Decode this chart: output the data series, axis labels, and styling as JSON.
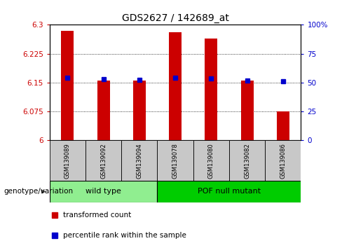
{
  "title": "GDS2627 / 142689_at",
  "samples": [
    "GSM139089",
    "GSM139092",
    "GSM139094",
    "GSM139078",
    "GSM139080",
    "GSM139082",
    "GSM139086"
  ],
  "bar_values": [
    6.285,
    6.155,
    6.155,
    6.28,
    6.265,
    6.155,
    6.075
  ],
  "percentile_values": [
    6.163,
    6.158,
    6.156,
    6.163,
    6.16,
    6.155,
    6.153
  ],
  "bar_color": "#cc0000",
  "percentile_color": "#0000cc",
  "ymin": 6.0,
  "ymax": 6.3,
  "yticks_left": [
    6.0,
    6.075,
    6.15,
    6.225,
    6.3
  ],
  "yticks_left_labels": [
    "6",
    "6.075",
    "6.15",
    "6.225",
    "6.3"
  ],
  "yticks_right": [
    0,
    25,
    50,
    75,
    100
  ],
  "yticks_right_labels": [
    "0",
    "25",
    "50",
    "75",
    "100%"
  ],
  "wt_color": "#90ee90",
  "pof_color": "#00cc00",
  "wt_label": "wild type",
  "pof_label": "POF null mutant",
  "legend_items": [
    {
      "label": "transformed count",
      "color": "#cc0000"
    },
    {
      "label": "percentile rank within the sample",
      "color": "#0000cc"
    }
  ],
  "genotype_label": "genotype/variation",
  "bar_width": 0.35,
  "background_color": "#ffffff",
  "grid_color": "#000000",
  "tick_color_left": "#cc0000",
  "tick_color_right": "#0000cc",
  "label_bg": "#c8c8c8"
}
